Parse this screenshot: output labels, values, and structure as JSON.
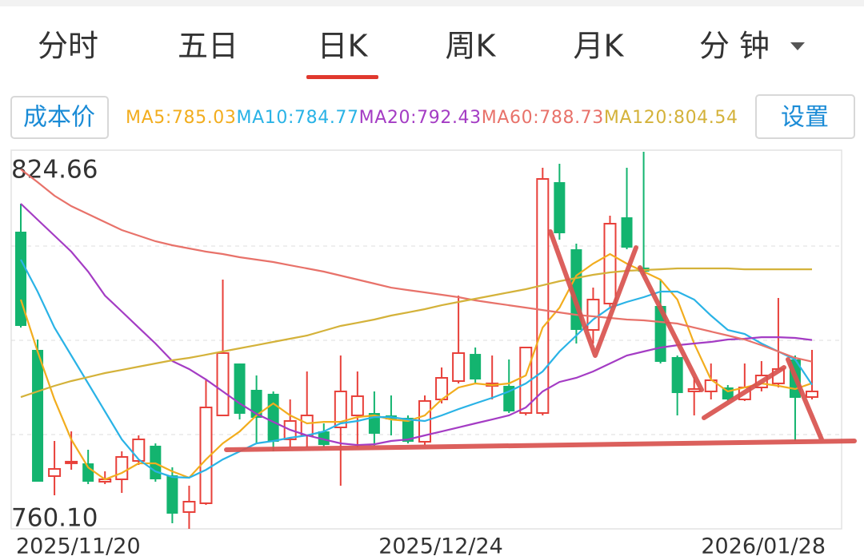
{
  "tabs": [
    "分时",
    "五日",
    "日K",
    "周K",
    "月K",
    "分 钟"
  ],
  "selected_tab": 2,
  "cost_button": "成本价",
  "settings_button": "设置",
  "chart_data": {
    "type": "candlestick",
    "categories": [
      "2025/11/20",
      null,
      null,
      null,
      null,
      null,
      null,
      null,
      null,
      null,
      null,
      null,
      null,
      null,
      null,
      null,
      null,
      null,
      null,
      null,
      null,
      null,
      null,
      null,
      "2025/12/24",
      null,
      null,
      null,
      null,
      null,
      null,
      null,
      null,
      null,
      null,
      null,
      null,
      null,
      null,
      null,
      null,
      null,
      null,
      null,
      null,
      null,
      null,
      "2026/01/28"
    ],
    "open": [
      810.98,
      790.74,
      769.13,
      771.45,
      771.31,
      768.17,
      768.58,
      771.73,
      774.33,
      769.26,
      762.97,
      764.48,
      779.52,
      788.41,
      783.9,
      783.22,
      775.42,
      776.1,
      776.79,
      777.47,
      779.52,
      779.93,
      779.52,
      779.11,
      775.01,
      782.26,
      785.4,
      790.05,
      784.58,
      784.58,
      779.93,
      779.93,
      819.46,
      807.97,
      794.16,
      798.67,
      813.44,
      804.83,
      798.26,
      789.51,
      783.63,
      783.63,
      784.31,
      782.26,
      784.31,
      785.0,
      789.1,
      782.67
    ],
    "high": [
      815.77,
      792.52,
      775.15,
      776.79,
      773.64,
      769.95,
      773.37,
      776.1,
      774.73,
      770.63,
      767.49,
      785.68,
      802.78,
      788.41,
      786.36,
      783.63,
      782.26,
      787.05,
      778.15,
      789.78,
      787.05,
      783.63,
      782.94,
      779.52,
      782.94,
      787.73,
      800.04,
      791.15,
      789.78,
      789.1,
      791.15,
      821.92,
      822.61,
      808.93,
      801.41,
      813.72,
      821.92,
      824.66,
      802.78,
      789.78,
      786.09,
      788.41,
      784.72,
      788.41,
      788.82,
      799.63,
      789.78,
      790.74
    ],
    "low": [
      794.57,
      768.17,
      765.84,
      770.22,
      767.76,
      767.76,
      766.25,
      771.04,
      768.17,
      761.06,
      760.1,
      764.2,
      779.52,
      778.84,
      774.73,
      773.37,
      774.05,
      774.05,
      774.05,
      767.49,
      774.05,
      774.33,
      776.1,
      774.73,
      774.46,
      781.57,
      785.0,
      785.0,
      782.26,
      779.93,
      779.52,
      779.52,
      809.61,
      791.83,
      791.83,
      797.99,
      807.97,
      803.46,
      788.41,
      779.52,
      779.52,
      782.26,
      781.99,
      781.99,
      783.63,
      784.31,
      775.15,
      782.26
    ],
    "close": [
      794.84,
      768.17,
      770.36,
      771.6,
      768.17,
      768.58,
      772.41,
      775.42,
      768.58,
      762.7,
      764.75,
      780.89,
      790.19,
      779.8,
      779.11,
      775.01,
      778.57,
      779.52,
      774.46,
      783.63,
      782.81,
      776.38,
      778.84,
      775.01,
      781.99,
      785.95,
      790.19,
      785.68,
      785.0,
      780.21,
      791.15,
      820.01,
      810.71,
      794.16,
      799.36,
      812.35,
      808.25,
      804.14,
      788.69,
      783.35,
      784.04,
      785.54,
      782.26,
      784.31,
      786.36,
      787.46,
      782.53,
      783.63
    ],
    "up_color": "#e8403a",
    "down_color": "#13b46f",
    "series": [
      {
        "name": "MA5:785.03",
        "color": "#f2ad1e",
        "values": [
          799.35,
          790.46,
          782.25,
          775.41,
          770.62,
          768.57,
          769.67,
          771.31,
          771.31,
          769.94,
          768.85,
          771.99,
          774.73,
          776.78,
          779.52,
          781.57,
          779.52,
          778.15,
          778.42,
          778.42,
          779.24,
          779.52,
          778.83,
          778.56,
          779.52,
          782.25,
          784.3,
          784.99,
          784.71,
          784.99,
          786.36,
          794.56,
          797.98,
          803.46,
          805.51,
          807.15,
          805.51,
          804.14,
          802.77,
          799.35,
          791.83,
          785.67,
          783.62,
          784.3,
          784.99,
          784.58,
          784.03,
          785.03
        ]
      },
      {
        "name": "MA10:784.77",
        "color": "#2ab3e6",
        "values": [
          806.19,
          800.72,
          794.56,
          789.78,
          784.99,
          780.2,
          775.41,
          771.99,
          769.94,
          768.98,
          768.85,
          770.21,
          771.99,
          773.36,
          774.73,
          775.14,
          775.69,
          776.1,
          776.78,
          778.15,
          778.56,
          779.24,
          779.24,
          778.83,
          778.56,
          779.52,
          780.61,
          781.57,
          782.53,
          783.62,
          784.99,
          787.04,
          790.46,
          793.2,
          795.93,
          797.98,
          798.94,
          799.76,
          800.72,
          800.72,
          799.35,
          796.62,
          794.15,
          793.47,
          791.83,
          790.46,
          789.09,
          784.77
        ]
      },
      {
        "name": "MA20:792.43",
        "color": "#a43cc4",
        "values": [
          815.77,
          813.03,
          810.3,
          807.56,
          804.14,
          800.04,
          797.3,
          794.56,
          791.83,
          788.82,
          787.45,
          785.67,
          783.62,
          781.57,
          779.79,
          778.42,
          777.05,
          776.1,
          775.41,
          774.73,
          774.45,
          774.59,
          775.14,
          775.41,
          776.1,
          776.78,
          777.46,
          778.15,
          778.83,
          779.52,
          780.88,
          783.62,
          785.26,
          785.95,
          787.04,
          788.41,
          789.78,
          790.46,
          791.14,
          791.55,
          791.83,
          792.1,
          792.51,
          792.65,
          792.92,
          792.92,
          792.79,
          792.43
        ]
      },
      {
        "name": "MA60:788.73",
        "color": "#e8726a",
        "values": [
          821.65,
          819.46,
          817.14,
          815.36,
          813.99,
          812.62,
          811.25,
          810.3,
          809.34,
          808.65,
          808.11,
          807.56,
          807.15,
          806.6,
          806.19,
          805.78,
          805.23,
          804.69,
          804.14,
          803.46,
          802.77,
          802.09,
          801.4,
          800.99,
          800.58,
          800.17,
          799.76,
          799.22,
          798.8,
          798.39,
          797.98,
          797.57,
          797.16,
          796.75,
          796.48,
          796.21,
          795.93,
          795.8,
          795.52,
          795.25,
          794.56,
          793.88,
          793.2,
          792.51,
          791.55,
          790.46,
          789.37,
          788.73
        ]
      },
      {
        "name": "MA120:804.54",
        "color": "#d4b23a",
        "values": [
          782.66,
          783.62,
          784.58,
          785.4,
          786.08,
          786.77,
          787.31,
          787.86,
          788.41,
          788.96,
          789.37,
          789.91,
          790.46,
          791.01,
          791.55,
          792.1,
          792.65,
          793.2,
          794.02,
          794.84,
          795.38,
          795.93,
          796.62,
          797.16,
          797.71,
          798.39,
          798.94,
          799.49,
          800.04,
          800.58,
          801.13,
          801.81,
          802.5,
          803.05,
          803.59,
          804.0,
          804.28,
          804.41,
          804.54,
          804.69,
          804.69,
          804.69,
          804.69,
          804.54,
          804.54,
          804.54,
          804.54,
          804.54
        ]
      }
    ],
    "ylim": [
      760.1,
      824.66
    ],
    "yticks": [
      {
        "value": 760.1,
        "label": "760.10"
      },
      824.66
    ]
  }
}
